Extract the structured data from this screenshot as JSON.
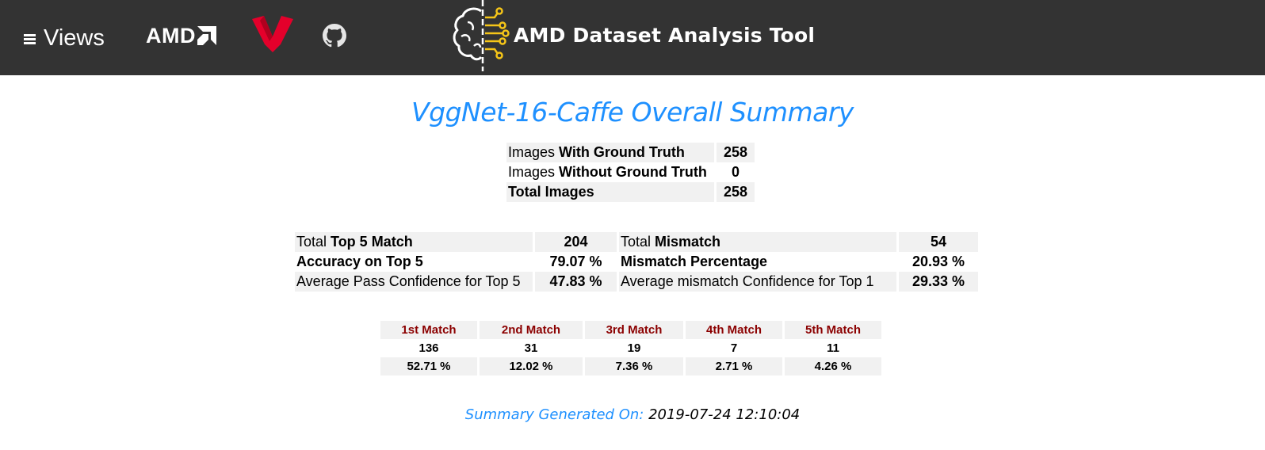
{
  "header": {
    "views_label": "Views",
    "amd_logo_text": "AMD",
    "app_title": "AMD Dataset Analysis Tool",
    "icons": [
      "menu-icon",
      "amd-logo",
      "ryzen-logo",
      "github-icon",
      "brain-circuit-icon"
    ],
    "colors": {
      "bar": "#333333",
      "ryzen": "#e4002b",
      "brain_circuit": "#f5c518"
    }
  },
  "title": "VggNet-16-Caffe Overall Summary",
  "ground_truth": {
    "rows": [
      {
        "prefix": "Images ",
        "bold": "With Ground Truth",
        "value": "258"
      },
      {
        "prefix": "Images ",
        "bold": "Without Ground Truth",
        "value": "0"
      },
      {
        "prefix": "",
        "bold": "Total Images",
        "value": "258"
      }
    ]
  },
  "top5": {
    "rows": [
      {
        "left_prefix": "Total ",
        "left_bold": "Top 5 Match",
        "left_value": "204",
        "right_prefix": "Total ",
        "right_bold": "Mismatch",
        "right_value": "54"
      },
      {
        "left_prefix": "",
        "left_bold": "Accuracy on Top 5",
        "left_value": "79.07 %",
        "right_prefix": "",
        "right_bold": "Mismatch Percentage",
        "right_value": "20.93 %"
      },
      {
        "left_prefix": "Average Pass Confidence for Top 5",
        "left_bold": "",
        "left_value": "47.83 %",
        "right_prefix": "Average mismatch Confidence for Top 1",
        "right_bold": "",
        "right_value": "29.33 %"
      }
    ]
  },
  "match_breakdown": {
    "headers": [
      "1st Match",
      "2nd Match",
      "3rd Match",
      "4th Match",
      "5th Match"
    ],
    "counts": [
      "136",
      "31",
      "19",
      "7",
      "11"
    ],
    "percents": [
      "52.71 %",
      "12.02 %",
      "7.36 %",
      "2.71 %",
      "4.26 %"
    ],
    "header_color": "#8b0000"
  },
  "footer": {
    "label": "Summary Generated On:",
    "timestamp": "2019-07-24 12:10:04"
  },
  "colors": {
    "accent": "#1e90ff",
    "row_shade": "#f1f1f1"
  }
}
